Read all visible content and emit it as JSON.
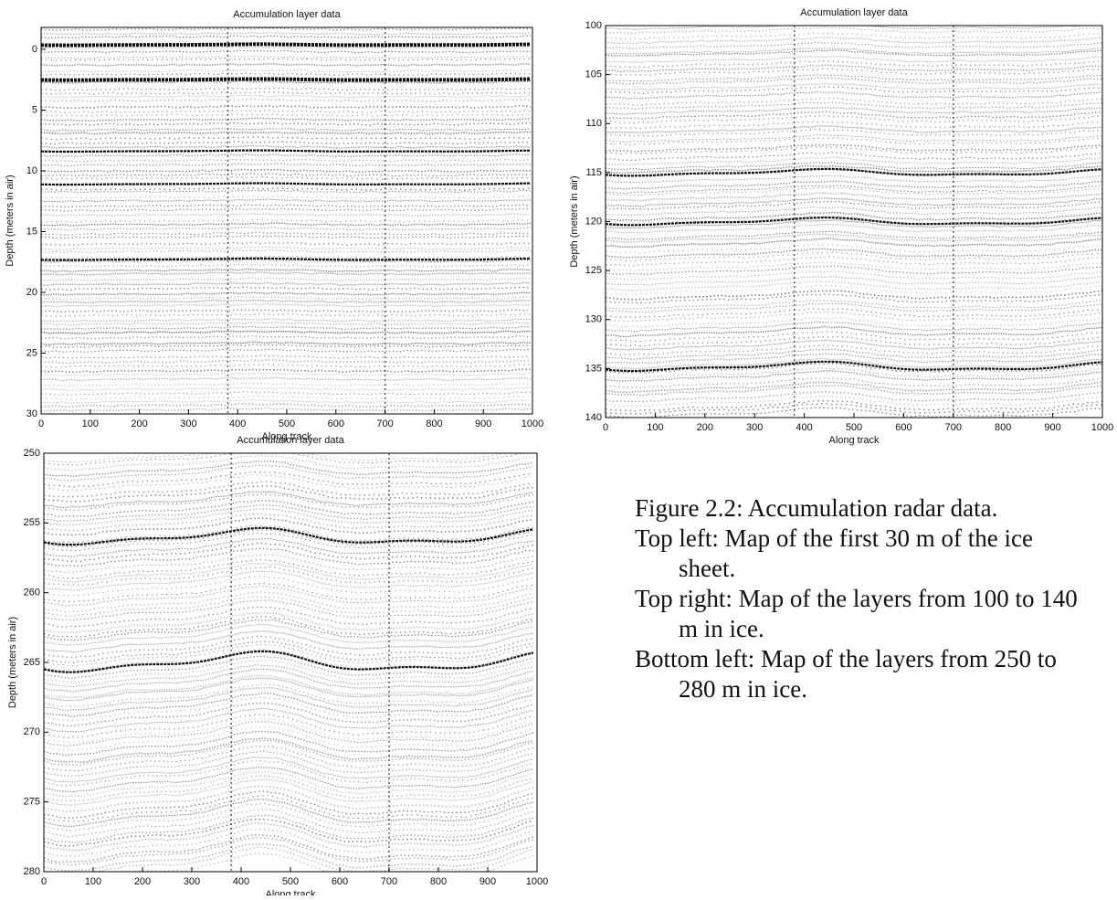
{
  "chart_data": [
    {
      "type": "radargram",
      "title": "Accumulation layer data",
      "xlabel": "Along track",
      "ylabel": "Depth (meters in air)",
      "xlim": [
        0,
        1000
      ],
      "xticks": [
        0,
        100,
        200,
        300,
        400,
        500,
        600,
        700,
        800,
        900,
        1000
      ],
      "ylim": [
        -1.8,
        30
      ],
      "yticks": [
        0,
        5,
        10,
        15,
        20,
        25,
        30
      ],
      "y_reversed": true
    },
    {
      "type": "radargram",
      "title": "Accumulation layer data",
      "xlabel": "Along track",
      "ylabel": "Depth (meters in air)",
      "xlim": [
        0,
        1000
      ],
      "xticks": [
        0,
        100,
        200,
        300,
        400,
        500,
        600,
        700,
        800,
        900,
        1000
      ],
      "ylim": [
        100,
        140
      ],
      "yticks": [
        100,
        105,
        110,
        115,
        120,
        125,
        130,
        135,
        140
      ],
      "y_reversed": true
    },
    {
      "type": "radargram",
      "title": "Accumulation layer data",
      "xlabel": "Along track",
      "ylabel": "Depth (meters in air)",
      "xlim": [
        0,
        1000
      ],
      "xticks": [
        0,
        100,
        200,
        300,
        400,
        500,
        600,
        700,
        800,
        900,
        1000
      ],
      "ylim": [
        250,
        280
      ],
      "yticks": [
        250,
        255,
        260,
        265,
        270,
        275,
        280
      ],
      "y_reversed": true
    }
  ],
  "caption": [
    "Figure 2.2:  Accumulation radar data.",
    "Top left:  Map of the first 30 m of the ice sheet.",
    "Top right:  Map of the layers from 100 to 140 m in ice.",
    "Bottom left:  Map of the layers from 250 to 280 m in ice."
  ]
}
